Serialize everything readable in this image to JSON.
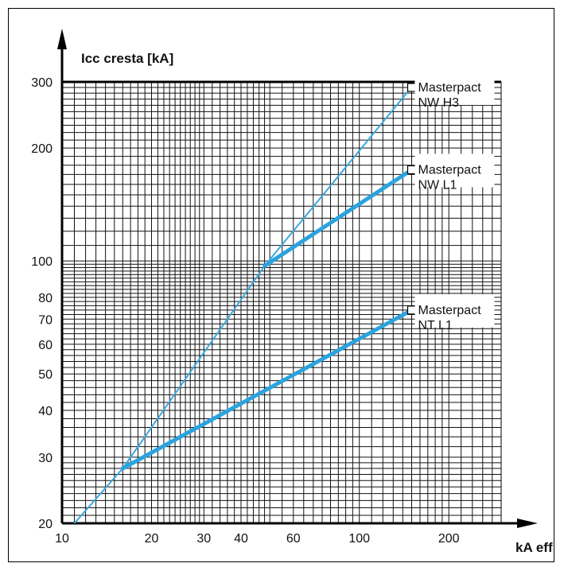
{
  "chart_data": {
    "type": "line",
    "title": "",
    "ylabel": "Icc cresta [kA]",
    "xlabel": "kA eff",
    "x_scale": "log",
    "y_scale": "log",
    "xlim": [
      10,
      300
    ],
    "ylim": [
      20,
      300
    ],
    "grid": true,
    "x_ticks": [
      {
        "value": 10,
        "label": "10"
      },
      {
        "value": 20,
        "label": "20"
      },
      {
        "value": 30,
        "label": "30"
      },
      {
        "value": 40,
        "label": "40"
      },
      {
        "value": 60,
        "label": "60"
      },
      {
        "value": 100,
        "label": "100"
      },
      {
        "value": 200,
        "label": "200"
      }
    ],
    "y_ticks": [
      {
        "value": 20,
        "label": "20"
      },
      {
        "value": 30,
        "label": "30"
      },
      {
        "value": 40,
        "label": "40"
      },
      {
        "value": 50,
        "label": "50"
      },
      {
        "value": 60,
        "label": "60"
      },
      {
        "value": 70,
        "label": "70"
      },
      {
        "value": 80,
        "label": "80"
      },
      {
        "value": 100,
        "label": "100"
      },
      {
        "value": 200,
        "label": "200"
      },
      {
        "value": 300,
        "label": "300"
      }
    ],
    "series": [
      {
        "name_line1": "Masterpact",
        "name_line2": "NW H3",
        "style": "thin",
        "color": "#3aa8e0",
        "points": [
          [
            11,
            20
          ],
          [
            16,
            28
          ],
          [
            48,
            97
          ],
          [
            155,
            300
          ]
        ],
        "end_marker": [
          150,
          290
        ]
      },
      {
        "name_line1": "Masterpact",
        "name_line2": "NW L1",
        "style": "thick",
        "color": "#2aa3df",
        "points": [
          [
            48,
            97
          ],
          [
            150,
            175
          ]
        ],
        "end_marker": [
          150,
          175
        ]
      },
      {
        "name_line1": "Masterpact",
        "name_line2": "NT L1",
        "style": "thick",
        "color": "#2aa3df",
        "points": [
          [
            16,
            28
          ],
          [
            150,
            74
          ]
        ],
        "end_marker": [
          150,
          74
        ]
      }
    ]
  }
}
